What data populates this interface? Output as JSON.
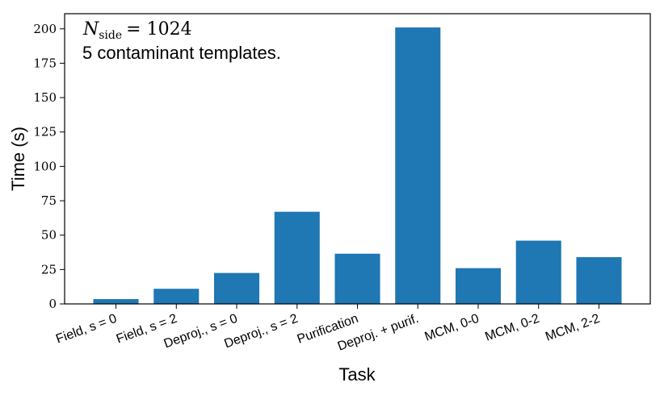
{
  "chart_data": {
    "type": "bar",
    "categories": [
      "Field, s = 0",
      "Field, s = 2",
      "Deproj., s = 0",
      "Deproj., s = 2",
      "Purification",
      "Deproj. + purif.",
      "MCM, 0-0",
      "MCM, 0-2",
      "MCM, 2-2"
    ],
    "values": [
      3.5,
      11,
      22.5,
      67,
      36.5,
      201,
      26,
      46,
      34
    ],
    "xlabel": "Task",
    "ylabel": "Time (s)",
    "ylim": [
      0,
      211
    ],
    "yticks": [
      0,
      25,
      50,
      75,
      100,
      125,
      150,
      175,
      200
    ],
    "bar_color": "#1f77b4",
    "grid": false,
    "annotation": {
      "n_symbol": "N",
      "n_subscript": "side",
      "n_value": "= 1024",
      "templates": "5 contaminant templates."
    }
  }
}
